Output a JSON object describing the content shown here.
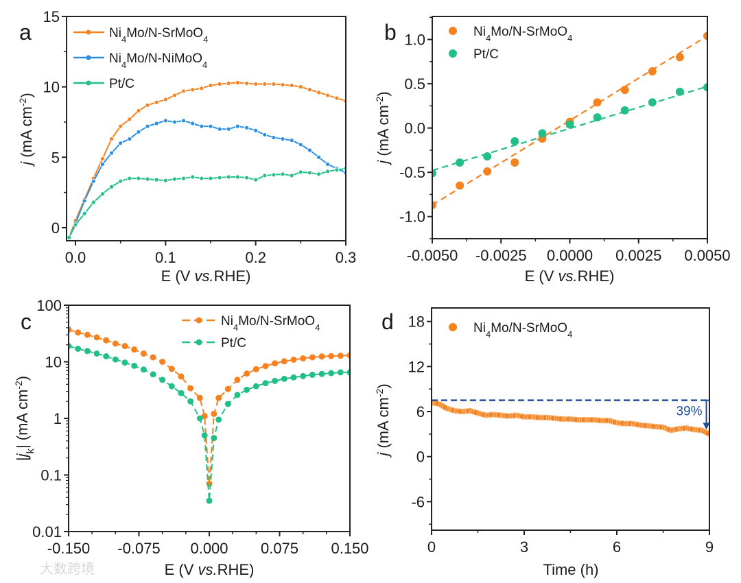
{
  "watermark": "大数跨境",
  "colors": {
    "orange": "#f5821f",
    "blue": "#2b8fe3",
    "green": "#22c088",
    "navy": "#1f4f9e",
    "axis": "#222222"
  },
  "chart_data": [
    {
      "panel": "a",
      "type": "line",
      "xlabel": {
        "pre": "E (V ",
        "italic": "vs.",
        "post": "RHE)"
      },
      "ylabel": {
        "italic": "j",
        "pre": " (mA cm",
        "sup": "-2",
        "post": ")"
      },
      "xlim": [
        -0.0099,
        0.3
      ],
      "ylim": [
        -0.93,
        15
      ],
      "xticks": [
        0,
        0.1,
        0.2,
        0.3
      ],
      "xtick_labels": [
        "0.0",
        "0.1",
        "0.2",
        "0.3"
      ],
      "yticks": [
        0,
        5,
        10,
        15
      ],
      "ytick_labels": [
        "0",
        "5",
        "10",
        "15"
      ],
      "legend_position": "top-left",
      "x": [
        -0.007,
        0,
        0.01,
        0.02,
        0.03,
        0.04,
        0.05,
        0.06,
        0.07,
        0.08,
        0.09,
        0.1,
        0.11,
        0.12,
        0.13,
        0.14,
        0.15,
        0.16,
        0.17,
        0.18,
        0.19,
        0.2,
        0.21,
        0.22,
        0.23,
        0.24,
        0.25,
        0.26,
        0.27,
        0.28,
        0.29,
        0.3
      ],
      "series": [
        {
          "name": "Ni4Mo/N-SrMoO4",
          "color": "#f5821f",
          "values": [
            -0.7,
            0.5,
            2.0,
            3.5,
            4.9,
            6.3,
            7.2,
            7.7,
            8.3,
            8.7,
            8.9,
            9.1,
            9.4,
            9.7,
            9.8,
            9.9,
            10.1,
            10.2,
            10.25,
            10.3,
            10.25,
            10.2,
            10.2,
            10.2,
            10.15,
            10.1,
            10.0,
            9.8,
            9.6,
            9.4,
            9.2,
            9.0
          ]
        },
        {
          "name": "Ni4Mo/N-NiMoO4",
          "color": "#2b8fe3",
          "values": [
            -0.7,
            0.3,
            1.9,
            3.3,
            4.5,
            5.3,
            6.0,
            6.3,
            6.8,
            7.2,
            7.4,
            7.6,
            7.5,
            7.6,
            7.4,
            7.2,
            7.2,
            7.0,
            7.0,
            7.2,
            7.1,
            6.9,
            6.6,
            6.4,
            6.3,
            6.2,
            5.9,
            5.5,
            5.0,
            4.5,
            4.2,
            3.9
          ]
        },
        {
          "name": "Pt/C",
          "color": "#22c088",
          "values": [
            -0.7,
            0.2,
            1.0,
            1.8,
            2.4,
            2.9,
            3.3,
            3.5,
            3.5,
            3.45,
            3.4,
            3.35,
            3.45,
            3.5,
            3.6,
            3.5,
            3.5,
            3.55,
            3.6,
            3.6,
            3.55,
            3.4,
            3.7,
            3.75,
            3.8,
            3.7,
            3.95,
            3.9,
            3.8,
            4.0,
            4.1,
            4.2
          ]
        }
      ]
    },
    {
      "panel": "b",
      "type": "scatter",
      "xlabel": {
        "pre": "E (V ",
        "italic": "vs.",
        "post": "RHE)"
      },
      "ylabel": {
        "italic": "j",
        "pre": " (mA cm",
        "sup": "-2",
        "post": ")"
      },
      "xlim": [
        -0.005,
        0.005
      ],
      "ylim": [
        -1.25,
        1.26
      ],
      "xticks": [
        -0.005,
        -0.0025,
        0,
        0.0025,
        0.005
      ],
      "xtick_labels": [
        "-0.0050",
        "-0.0025",
        "0.0000",
        "0.0025",
        "0.0050"
      ],
      "yticks": [
        -1.0,
        -0.5,
        0,
        0.5,
        1.0
      ],
      "ytick_labels": [
        "-1.0",
        "-0.5",
        "0.0",
        "0.5",
        "1.0"
      ],
      "legend_position": "top-left",
      "x": [
        -0.005,
        -0.004,
        -0.003,
        -0.002,
        -0.001,
        0,
        0.001,
        0.002,
        0.003,
        0.004,
        0.005
      ],
      "series": [
        {
          "name": "Ni4Mo/N-SrMoO4",
          "color": "#f5821f",
          "values": [
            -0.87,
            -0.65,
            -0.49,
            -0.39,
            -0.12,
            0.07,
            0.29,
            0.43,
            0.64,
            0.8,
            1.04
          ],
          "fit": [
            -0.87,
            1.04
          ]
        },
        {
          "name": "Pt/C",
          "color": "#22c088",
          "values": [
            -0.51,
            -0.39,
            -0.32,
            -0.15,
            -0.06,
            0.04,
            0.12,
            0.2,
            0.29,
            0.41,
            0.46
          ],
          "fit": [
            -0.48,
            0.47
          ]
        }
      ]
    },
    {
      "panel": "c",
      "type": "line",
      "yscale": "log",
      "xlabel": {
        "pre": "E (V ",
        "italic": "vs.",
        "post": "RHE)"
      },
      "ylabel": {
        "bar1": "|",
        "italic": "j",
        "sub": "k",
        "pre": "| (mA cm",
        "sup": "-2",
        "post": ")"
      },
      "xlim": [
        -0.15,
        0.15
      ],
      "ylim": [
        0.01,
        100
      ],
      "xticks": [
        -0.15,
        -0.075,
        0,
        0.075,
        0.15
      ],
      "xtick_labels": [
        "-0.150",
        "-0.075",
        "0.000",
        "0.075",
        "0.150"
      ],
      "yticks": [
        0.01,
        0.1,
        1,
        10,
        100
      ],
      "ytick_labels": [
        "0.01",
        "0.1",
        "1",
        "10",
        "100"
      ],
      "legend_position": "top-right",
      "x": [
        -0.15,
        -0.14,
        -0.13,
        -0.12,
        -0.11,
        -0.1,
        -0.09,
        -0.08,
        -0.07,
        -0.06,
        -0.05,
        -0.04,
        -0.03,
        -0.02,
        -0.01,
        -0.005,
        0,
        0.005,
        0.01,
        0.02,
        0.03,
        0.04,
        0.05,
        0.06,
        0.07,
        0.08,
        0.09,
        0.1,
        0.11,
        0.12,
        0.13,
        0.14,
        0.15
      ],
      "series": [
        {
          "name": "Ni4Mo/N-SrMoO4",
          "color": "#f5821f",
          "values": [
            37,
            33,
            30,
            27,
            24,
            21,
            19,
            16.5,
            14,
            12,
            10,
            7.5,
            5.5,
            3.4,
            2.3,
            1.1,
            0.07,
            1.2,
            2.3,
            3.3,
            4.8,
            6.2,
            7.4,
            8.4,
            9.4,
            10.2,
            10.9,
            11.5,
            12.0,
            12.4,
            12.6,
            12.8,
            13.0
          ]
        },
        {
          "name": "Pt/C",
          "color": "#22c088",
          "values": [
            19,
            17,
            15.5,
            14,
            12.5,
            11,
            9.7,
            8.5,
            7.3,
            6.0,
            4.8,
            3.7,
            2.8,
            2.0,
            1.0,
            0.5,
            0.035,
            0.45,
            0.95,
            1.8,
            2.6,
            3.2,
            3.7,
            4.2,
            4.6,
            5.0,
            5.3,
            5.6,
            5.9,
            6.1,
            6.3,
            6.5,
            6.5
          ]
        }
      ]
    },
    {
      "panel": "d",
      "type": "scatter",
      "xlabel": {
        "pre": "Time (h)"
      },
      "ylabel": {
        "italic": "j",
        "pre": " (mA cm",
        "sup": "-2",
        "post": ")"
      },
      "xlim": [
        0,
        9
      ],
      "ylim": [
        -9.8,
        19.8
      ],
      "xticks": [
        0,
        3,
        6,
        9
      ],
      "xtick_labels": [
        "0",
        "3",
        "6",
        "9"
      ],
      "yticks": [
        -6,
        0,
        6,
        12,
        18
      ],
      "ytick_labels": [
        "-6",
        "0",
        "6",
        "12",
        "18"
      ],
      "legend_position": "top-left",
      "x": [
        0,
        0.25,
        0.5,
        0.75,
        1,
        1.25,
        1.5,
        1.75,
        2,
        2.25,
        2.5,
        2.75,
        3,
        3.25,
        3.5,
        3.75,
        4,
        4.25,
        4.5,
        4.75,
        5,
        5.25,
        5.5,
        5.75,
        6,
        6.25,
        6.5,
        6.75,
        7,
        7.25,
        7.5,
        7.75,
        8,
        8.25,
        8.5,
        8.75,
        9
      ],
      "series": [
        {
          "name": "Ni4Mo/N-SrMoO4",
          "color": "#f5821f",
          "values": [
            7.2,
            7.0,
            6.4,
            6.1,
            6.0,
            6.1,
            5.8,
            5.5,
            5.6,
            5.5,
            5.4,
            5.5,
            5.3,
            5.3,
            5.2,
            5.2,
            5.1,
            5.0,
            5.0,
            4.9,
            4.9,
            4.9,
            4.8,
            4.8,
            4.5,
            4.4,
            4.4,
            4.2,
            4.1,
            4.0,
            3.9,
            3.5,
            3.7,
            3.8,
            3.6,
            3.5,
            3.0
          ]
        }
      ],
      "annotation": {
        "reference_value": 7.5,
        "arrow_x": 8.9,
        "arrow_to": 3.6,
        "text": "39%",
        "color": "#1f4f9e"
      }
    }
  ],
  "panel_letters": [
    "a",
    "b",
    "c",
    "d"
  ]
}
